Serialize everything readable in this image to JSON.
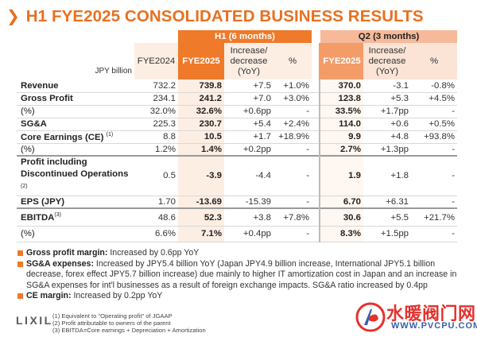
{
  "title": "H1 FYE2025 CONSOLIDATED BUSINESS RESULTS",
  "table": {
    "group_h1": "H1 (6 months)",
    "group_q2": "Q2 (3 months)",
    "unit_label": "JPY billion",
    "col_fye2024": "FYE2024",
    "col_fye2025": "FYE2025",
    "col_incdec": "Increase/ decrease (YoY)",
    "col_pct": "%",
    "rows": [
      {
        "label": "Revenue",
        "sup": "",
        "fye2024": "732.2",
        "fye2025": "739.8",
        "inc": "+7.5",
        "pct": "+1.0%",
        "q2": "370.0",
        "q2inc": "-3.1",
        "q2pct": "-0.8%"
      },
      {
        "label": "Gross Profit",
        "sup": "",
        "fye2024": "234.1",
        "fye2025": "241.2",
        "inc": "+7.0",
        "pct": "+3.0%",
        "q2": "123.8",
        "q2inc": "+5.3",
        "q2pct": "+4.5%"
      },
      {
        "label": "(%)",
        "sup": "",
        "fye2024": "32.0%",
        "fye2025": "32.6%",
        "inc": "+0.6pp",
        "pct": "-",
        "q2": "33.5%",
        "q2inc": "+1.7pp",
        "q2pct": "-"
      },
      {
        "label": "SG&A",
        "sup": "",
        "fye2024": "225.3",
        "fye2025": "230.7",
        "inc": "+5.4",
        "pct": "+2.4%",
        "q2": "114.0",
        "q2inc": "+0.6",
        "q2pct": "+0.5%"
      },
      {
        "label": "Core Earnings (CE)",
        "sup": "(1)",
        "fye2024": "8.8",
        "fye2025": "10.5",
        "inc": "+1.7",
        "pct": "+18.9%",
        "q2": "9.9",
        "q2inc": "+4.8",
        "q2pct": "+93.8%"
      },
      {
        "label": "(%)",
        "sup": "",
        "fye2024": "1.2%",
        "fye2025": "1.4%",
        "inc": "+0.2pp",
        "pct": "-",
        "q2": "2.7%",
        "q2inc": "+1.3pp",
        "q2pct": "-"
      },
      {
        "label": "Profit including Discontinued Operations",
        "sup": "(2)",
        "fye2024": "0.5",
        "fye2025": "-3.9",
        "inc": "-4.4",
        "pct": "-",
        "q2": "1.9",
        "q2inc": "+1.8",
        "q2pct": "-"
      },
      {
        "label": "EPS (JPY)",
        "sup": "",
        "fye2024": "1.70",
        "fye2025": "-13.69",
        "inc": "-15.39",
        "pct": "-",
        "q2": "6.70",
        "q2inc": "+6.31",
        "q2pct": "-"
      },
      {
        "label": "EBITDA",
        "sup": "(3)",
        "fye2024": "48.6",
        "fye2025": "52.3",
        "inc": "+3.8",
        "pct": "+7.8%",
        "q2": "30.6",
        "q2inc": "+5.5",
        "q2pct": "+21.7%"
      },
      {
        "label": "(%)",
        "sup": "",
        "fye2024": "6.6%",
        "fye2025": "7.1%",
        "inc": "+0.4pp",
        "pct": "-",
        "q2": "8.3%",
        "q2inc": "+1.5pp",
        "q2pct": "-"
      }
    ]
  },
  "notes": [
    {
      "bold": "Gross profit margin:",
      "text": " Increased by 0.6pp YoY"
    },
    {
      "bold": "SG&A expenses:",
      "text": " Increased by JPY5.4 billion YoY (Japan JPY4.9 billion increase, International JPY5.1 billion decrease, forex effect JPY5.7 billion increase) due mainly to higher IT amortization cost in Japan and an increase in SG&A expenses for int'l businesses as a result of foreign exchange impacts. SG&A ratio increased by 0.4pp"
    },
    {
      "bold": "CE margin:",
      "text": " Increased by 0.2pp YoY"
    }
  ],
  "footnotes": [
    "(1)  Equivalent to \"Operating profit\" of JGAAP",
    "(2)  Profit attributable to owners of the parent",
    "(3)  EBITDA=Core earnings + Depreciation + Amortization"
  ],
  "logo": "LIXIL",
  "watermark": {
    "title": "水暖阀门网",
    "url": "WWW.PVCPU.COM"
  },
  "colors": {
    "accent": "#ef7a2a",
    "q2_header": "#f6b99a",
    "watermark_red": "#e5322d",
    "watermark_blue": "#3a5ea8"
  }
}
